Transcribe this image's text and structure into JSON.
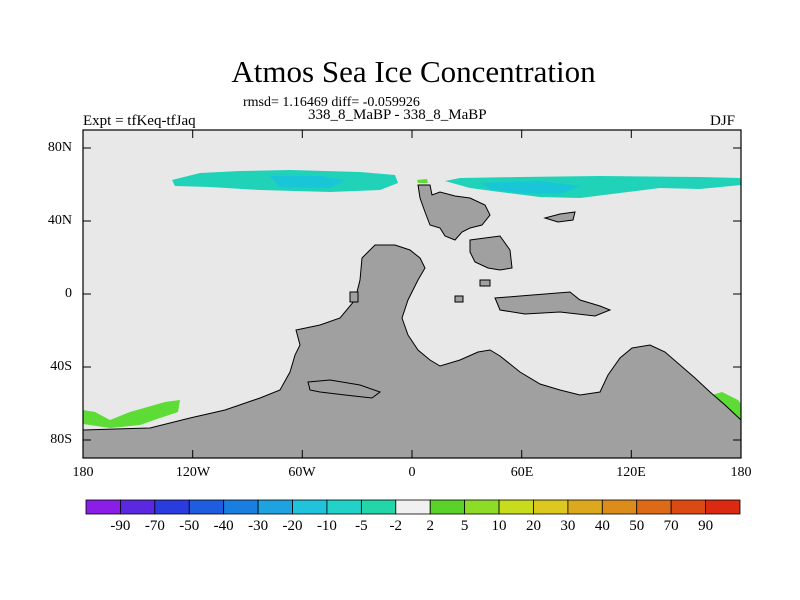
{
  "title": "Atmos Sea Ice Concentration",
  "stats": "rmsd= 1.16469 diff= -0.059926",
  "subtitle": "338_8_MaBP - 338_8_MaBP",
  "experiment": "Expt = tfKeq-tfJaq",
  "season": "DJF",
  "y_tick_labels": [
    "80N",
    "40N",
    "0",
    "40S",
    "80S"
  ],
  "x_tick_labels": [
    "180",
    "120W",
    "60W",
    "0",
    "60E",
    "120E",
    "180"
  ],
  "colors": {
    "land": "#a0a0a0",
    "ocean": "#e8e8e8",
    "ice_cyan": "#20d2b8",
    "ice_deep": "#18c6d8",
    "ice_green": "#5ddc35"
  },
  "colorbar": {
    "labels": [
      "-90",
      "-70",
      "-50",
      "-40",
      "-30",
      "-20",
      "-10",
      "-5",
      "-2",
      "2",
      "5",
      "10",
      "20",
      "30",
      "40",
      "50",
      "70",
      "90"
    ],
    "colors": [
      "#8a1ee6",
      "#5a28e0",
      "#2a3ce0",
      "#1e5ce0",
      "#1a7ee0",
      "#1ea2e0",
      "#20c2dc",
      "#22d2c8",
      "#22d6aa",
      "#f0f0f0",
      "#5ad22a",
      "#8cdc28",
      "#c8dc1e",
      "#dcc81e",
      "#dca81e",
      "#dc8c1a",
      "#dc6a16",
      "#dc4a14",
      "#dc2a12"
    ]
  }
}
